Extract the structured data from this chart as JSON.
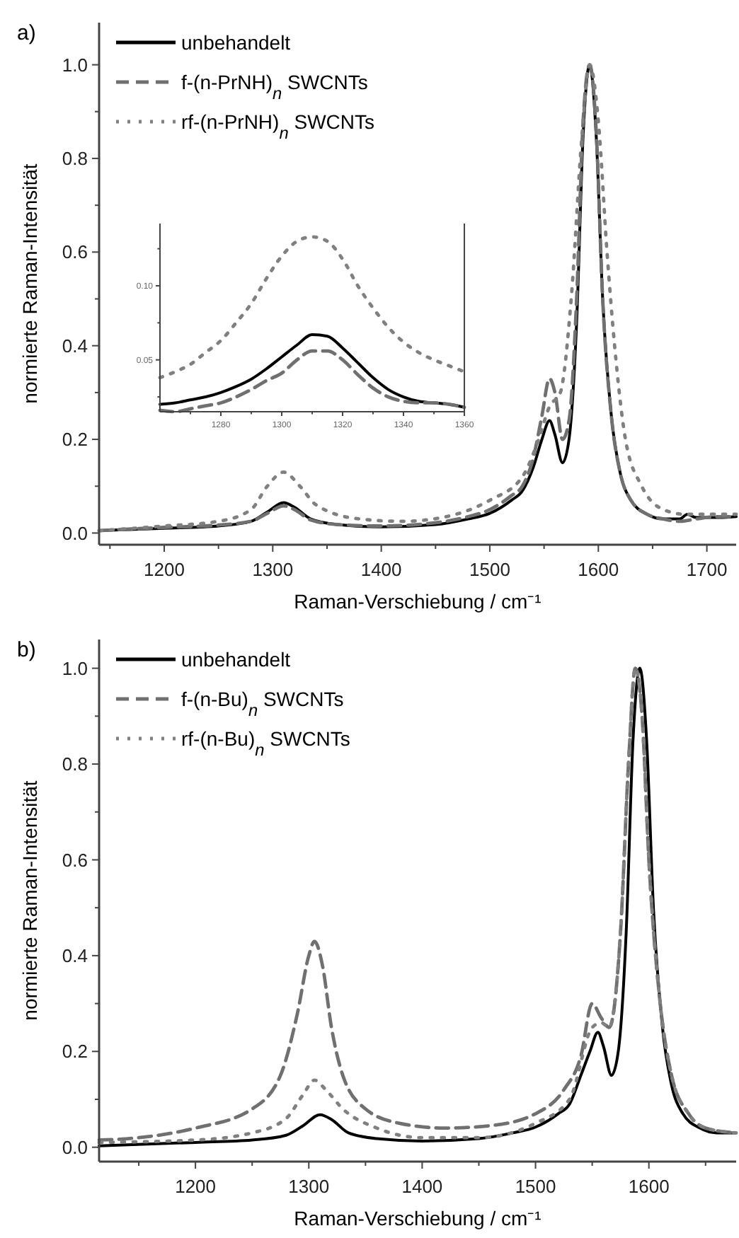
{
  "chart_data": [
    {
      "type": "line",
      "xlabel": "Raman-Verschiebung / cm⁻¹",
      "ylabel": "normierte Raman-Intensität",
      "annotations": [
        "a)"
      ],
      "legend": "top left",
      "grid": false,
      "xlim": [
        1140,
        1727
      ],
      "ylim": [
        -0.025,
        1.09
      ],
      "xticks": [
        {
          "value": 1150,
          "label": null
        },
        1200,
        {
          "value": 1250,
          "label": null
        },
        1300,
        {
          "value": 1350,
          "label": null
        },
        1400,
        {
          "value": 1450,
          "label": null
        },
        1500,
        {
          "value": 1550,
          "label": null
        },
        1600,
        {
          "value": 1650,
          "label": null
        },
        1700
      ],
      "yticks": [
        {
          "value": 0,
          "label": "0.0"
        },
        {
          "value": 0.1,
          "label": null
        },
        {
          "value": 0.2,
          "label": "0.2"
        },
        {
          "value": 0.3,
          "label": null
        },
        {
          "value": 0.4,
          "label": "0.4"
        },
        {
          "value": 0.5,
          "label": null
        },
        {
          "value": 0.6,
          "label": "0.6"
        },
        {
          "value": 0.7,
          "label": null
        },
        {
          "value": 0.8,
          "label": "0.8"
        },
        {
          "value": 0.9,
          "label": null
        },
        {
          "value": 1,
          "label": "1.0"
        }
      ],
      "series": [
        {
          "name": "unbehandelt",
          "color": "#000000",
          "line_style": "solid",
          "x": [
            1140,
            1200,
            1250,
            1280,
            1295,
            1310,
            1320,
            1335,
            1360,
            1400,
            1450,
            1480,
            1500,
            1520,
            1530,
            1540,
            1548,
            1555,
            1560,
            1567,
            1573,
            1580,
            1586,
            1592,
            1598,
            1604,
            1612,
            1620,
            1630,
            1645,
            1660,
            1675,
            1682,
            1690,
            1710,
            1727
          ],
          "values": [
            0.005,
            0.01,
            0.015,
            0.025,
            0.045,
            0.065,
            0.055,
            0.03,
            0.018,
            0.013,
            0.018,
            0.03,
            0.042,
            0.07,
            0.09,
            0.14,
            0.2,
            0.24,
            0.21,
            0.15,
            0.2,
            0.45,
            0.85,
            1.0,
            0.85,
            0.5,
            0.25,
            0.13,
            0.07,
            0.04,
            0.03,
            0.03,
            0.04,
            0.033,
            0.033,
            0.035
          ]
        },
        {
          "name": "f-(n-PrNH)$_{n}$ SWCNTs",
          "color": "#707070",
          "line_style": "dashed",
          "x": [
            1140,
            1200,
            1250,
            1280,
            1295,
            1310,
            1320,
            1335,
            1360,
            1400,
            1450,
            1480,
            1500,
            1520,
            1530,
            1540,
            1548,
            1555,
            1560,
            1567,
            1573,
            1580,
            1586,
            1592,
            1598,
            1604,
            1612,
            1620,
            1630,
            1645,
            1660,
            1675,
            1690,
            1710,
            1727
          ],
          "values": [
            0.005,
            0.012,
            0.017,
            0.025,
            0.042,
            0.058,
            0.05,
            0.028,
            0.018,
            0.015,
            0.022,
            0.035,
            0.05,
            0.08,
            0.1,
            0.16,
            0.25,
            0.33,
            0.3,
            0.2,
            0.24,
            0.5,
            0.88,
            1.0,
            0.86,
            0.5,
            0.25,
            0.13,
            0.07,
            0.04,
            0.03,
            0.025,
            0.03,
            0.035,
            0.035
          ]
        },
        {
          "name": "rf-(n-PrNH)$_{n}$ SWCNTs",
          "color": "#808080",
          "line_style": "dotted",
          "x": [
            1140,
            1200,
            1250,
            1280,
            1295,
            1310,
            1325,
            1340,
            1380,
            1420,
            1460,
            1500,
            1530,
            1545,
            1555,
            1565,
            1575,
            1585,
            1592,
            1600,
            1608,
            1615,
            1625,
            1640,
            1660,
            1680,
            1727
          ],
          "values": [
            0.005,
            0.015,
            0.025,
            0.05,
            0.1,
            0.13,
            0.1,
            0.06,
            0.03,
            0.025,
            0.035,
            0.07,
            0.12,
            0.2,
            0.27,
            0.3,
            0.5,
            0.85,
            1.0,
            0.88,
            0.6,
            0.4,
            0.2,
            0.1,
            0.05,
            0.04,
            0.04
          ]
        }
      ]
    },
    {
      "type": "line",
      "legend": false,
      "grid": false,
      "xlim": [
        1260,
        1360
      ],
      "ylim": [
        0.015,
        0.142
      ],
      "xticks": [
        {
          "value": 1270,
          "label": null
        },
        1280,
        {
          "value": 1290,
          "label": null
        },
        1300,
        {
          "value": 1310,
          "label": null
        },
        1320,
        {
          "value": 1330,
          "label": null
        },
        1340,
        {
          "value": 1350,
          "label": null
        },
        1360
      ],
      "yticks": [
        {
          "value": 0.025,
          "label": null
        },
        0.05,
        {
          "value": 0.075,
          "label": null
        },
        {
          "value": 0.1,
          "label": "0.10"
        },
        {
          "value": 0.125,
          "label": null
        }
      ],
      "series": [
        {
          "color": "#000000",
          "line_style": "solid",
          "x": [
            1260,
            1265,
            1270,
            1275,
            1280,
            1285,
            1290,
            1295,
            1300,
            1305,
            1310,
            1315,
            1320,
            1325,
            1330,
            1335,
            1340,
            1345,
            1350,
            1355,
            1360
          ],
          "values": [
            0.02,
            0.021,
            0.023,
            0.025,
            0.028,
            0.032,
            0.037,
            0.044,
            0.052,
            0.06,
            0.067,
            0.066,
            0.058,
            0.048,
            0.038,
            0.03,
            0.025,
            0.022,
            0.021,
            0.02,
            0.018
          ]
        },
        {
          "color": "#707070",
          "line_style": "dashed",
          "x": [
            1260,
            1265,
            1270,
            1275,
            1280,
            1285,
            1290,
            1295,
            1300,
            1305,
            1310,
            1315,
            1320,
            1325,
            1330,
            1335,
            1340,
            1345,
            1350,
            1355,
            1360
          ],
          "values": [
            0.016,
            0.015,
            0.017,
            0.019,
            0.021,
            0.025,
            0.03,
            0.036,
            0.041,
            0.05,
            0.056,
            0.056,
            0.05,
            0.04,
            0.031,
            0.025,
            0.022,
            0.021,
            0.021,
            0.02,
            0.018
          ]
        },
        {
          "color": "#808080",
          "line_style": "dotted",
          "x": [
            1260,
            1265,
            1270,
            1275,
            1280,
            1285,
            1290,
            1295,
            1300,
            1305,
            1310,
            1315,
            1320,
            1325,
            1330,
            1335,
            1340,
            1345,
            1350,
            1355,
            1360
          ],
          "values": [
            0.038,
            0.042,
            0.047,
            0.055,
            0.063,
            0.075,
            0.088,
            0.105,
            0.12,
            0.13,
            0.133,
            0.13,
            0.118,
            0.1,
            0.085,
            0.072,
            0.062,
            0.055,
            0.05,
            0.046,
            0.042
          ]
        }
      ]
    },
    {
      "type": "line",
      "xlabel": "Raman-Verschiebung / cm⁻¹",
      "ylabel": "normierte Raman-Intensität",
      "annotations": [
        "b)"
      ],
      "legend": "top left",
      "grid": false,
      "xlim": [
        1115,
        1677
      ],
      "ylim": [
        -0.03,
        1.06
      ],
      "xticks": [
        {
          "value": 1150,
          "label": null
        },
        1200,
        {
          "value": 1250,
          "label": null
        },
        1300,
        {
          "value": 1350,
          "label": null
        },
        1400,
        {
          "value": 1450,
          "label": null
        },
        1500,
        {
          "value": 1550,
          "label": null
        },
        1600,
        {
          "value": 1650,
          "label": null
        }
      ],
      "yticks": [
        {
          "value": 0,
          "label": "0.0"
        },
        {
          "value": 0.1,
          "label": null
        },
        {
          "value": 0.2,
          "label": "0.2"
        },
        {
          "value": 0.3,
          "label": null
        },
        {
          "value": 0.4,
          "label": "0.4"
        },
        {
          "value": 0.5,
          "label": null
        },
        {
          "value": 0.6,
          "label": "0.6"
        },
        {
          "value": 0.7,
          "label": null
        },
        {
          "value": 0.8,
          "label": "0.8"
        },
        {
          "value": 0.9,
          "label": null
        },
        {
          "value": 1,
          "label": "1.0"
        }
      ],
      "series": [
        {
          "name": "unbehandelt",
          "color": "#000000",
          "line_style": "solid",
          "x": [
            1115,
            1200,
            1250,
            1280,
            1295,
            1310,
            1320,
            1335,
            1360,
            1400,
            1450,
            1480,
            1500,
            1520,
            1530,
            1540,
            1548,
            1555,
            1560,
            1567,
            1573,
            1580,
            1586,
            1592,
            1598,
            1604,
            1612,
            1620,
            1630,
            1645,
            1660,
            1677
          ],
          "values": [
            0.003,
            0.01,
            0.015,
            0.025,
            0.045,
            0.068,
            0.058,
            0.03,
            0.018,
            0.013,
            0.018,
            0.03,
            0.042,
            0.07,
            0.09,
            0.15,
            0.2,
            0.24,
            0.21,
            0.15,
            0.2,
            0.45,
            0.85,
            1.0,
            0.85,
            0.5,
            0.25,
            0.13,
            0.07,
            0.04,
            0.03,
            0.03
          ]
        },
        {
          "name": "f-(n-Bu)$_{n}$ SWCNTs",
          "color": "#707070",
          "line_style": "dashed",
          "x": [
            1115,
            1150,
            1200,
            1250,
            1275,
            1290,
            1300,
            1305,
            1312,
            1320,
            1330,
            1350,
            1380,
            1420,
            1460,
            1500,
            1525,
            1540,
            1550,
            1558,
            1565,
            1575,
            1582,
            1588,
            1594,
            1600,
            1610,
            1620,
            1635,
            1650,
            1677
          ],
          "values": [
            0.015,
            0.02,
            0.04,
            0.08,
            0.15,
            0.28,
            0.4,
            0.43,
            0.38,
            0.25,
            0.15,
            0.08,
            0.05,
            0.04,
            0.045,
            0.07,
            0.12,
            0.19,
            0.3,
            0.27,
            0.25,
            0.45,
            0.8,
            1.0,
            0.9,
            0.6,
            0.3,
            0.15,
            0.07,
            0.04,
            0.03
          ]
        },
        {
          "name": "rf-(n-Bu)$_{n}$ SWCNTs",
          "color": "#808080",
          "line_style": "dotted",
          "x": [
            1115,
            1200,
            1250,
            1280,
            1295,
            1305,
            1315,
            1330,
            1360,
            1400,
            1450,
            1500,
            1530,
            1550,
            1558,
            1565,
            1575,
            1582,
            1588,
            1594,
            1600,
            1610,
            1620,
            1635,
            1650,
            1677
          ],
          "values": [
            0.01,
            0.015,
            0.03,
            0.06,
            0.11,
            0.14,
            0.12,
            0.08,
            0.04,
            0.02,
            0.02,
            0.05,
            0.1,
            0.25,
            0.26,
            0.25,
            0.45,
            0.8,
            1.0,
            0.9,
            0.6,
            0.3,
            0.15,
            0.07,
            0.04,
            0.03
          ]
        }
      ]
    }
  ]
}
